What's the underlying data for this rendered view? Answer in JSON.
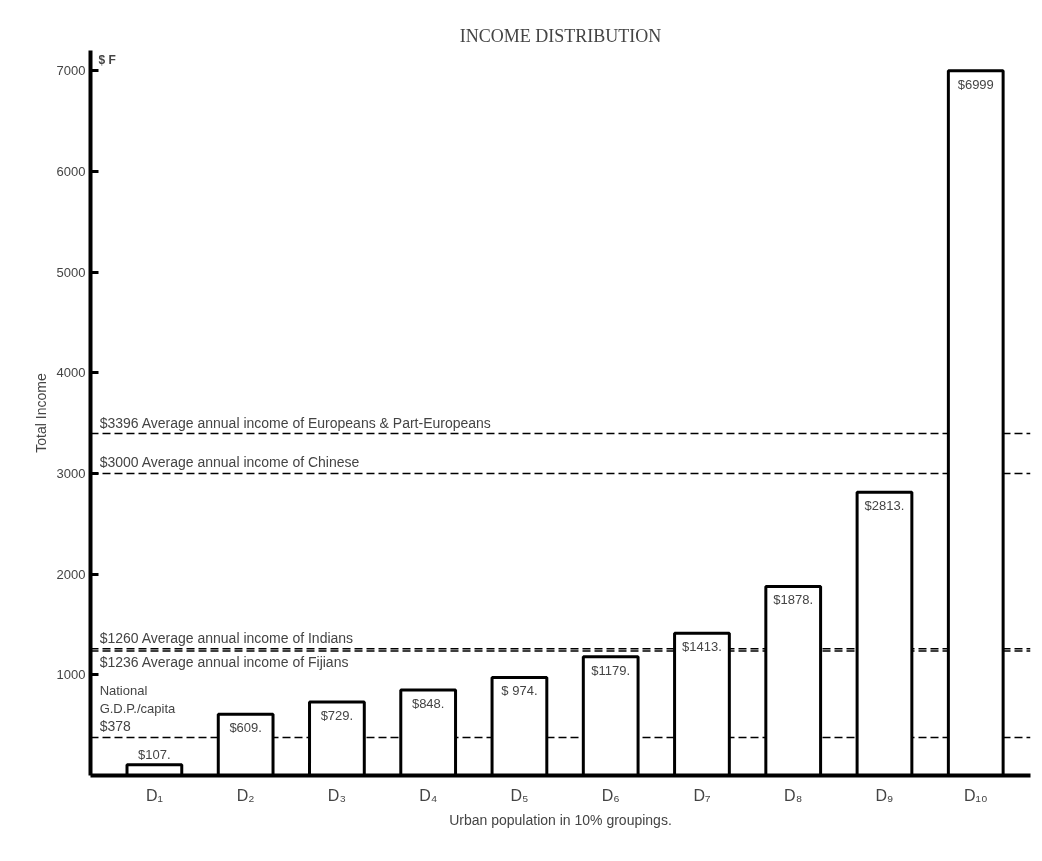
{
  "chart_data": {
    "type": "bar",
    "title": "INCOME DISTRIBUTION",
    "xlabel": "Urban population in 10% groupings.",
    "ylabel": "Total Income",
    "categories": [
      "D₁",
      "D₂",
      "D₃",
      "D₄",
      "D₅",
      "D₆",
      "D₇",
      "D₈",
      "D₉",
      "D₁₀"
    ],
    "values": [
      107,
      609,
      729,
      848,
      974,
      1179,
      1413,
      1878,
      2813,
      6999
    ],
    "value_labels": [
      "$107.",
      "$609.",
      "$729.",
      "$848.",
      "$ 974.",
      "$1179.",
      "$1413.",
      "$1878.",
      "$2813.",
      "$6999"
    ],
    "color": "#ffffff",
    "ylim": [
      0,
      7200
    ],
    "yticks": [
      1000,
      2000,
      3000,
      4000,
      5000,
      6000,
      7000
    ],
    "grid": false,
    "ref_lines": [
      {
        "axis": "y",
        "value": 3396,
        "label": "$3396 Average annual income of Europeans & Part-Europeans",
        "line_style": "dashed"
      },
      {
        "axis": "y",
        "value": 3000,
        "label": "$3000 Average annual income of Chinese",
        "line_style": "dashed"
      },
      {
        "axis": "y",
        "value": 1260,
        "label": "$1260 Average annual income of Indians",
        "line_style": "dashed"
      },
      {
        "axis": "y",
        "value": 1236,
        "label": "$1236 Average annual income of Fijians",
        "line_style": "dashed"
      },
      {
        "axis": "y",
        "value": 378,
        "label": "$378",
        "line_style": "dashed"
      }
    ],
    "annotations": [
      "$ F",
      "National G.D.P./capita"
    ]
  }
}
